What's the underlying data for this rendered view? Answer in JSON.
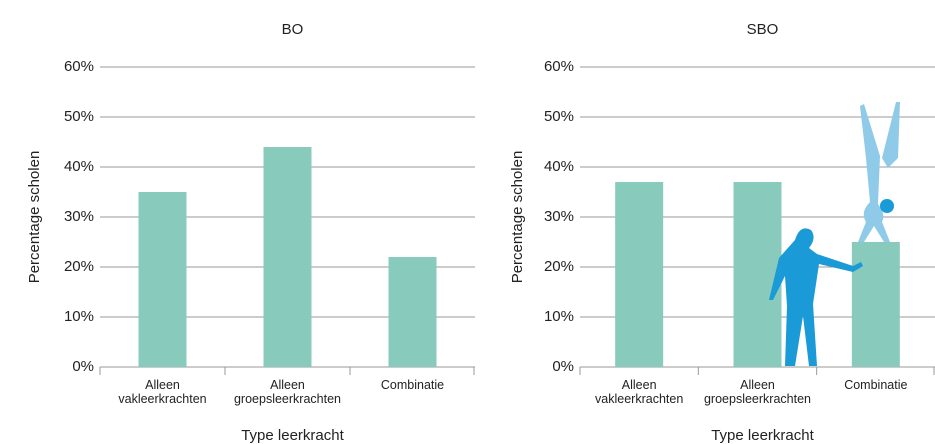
{
  "chart_data": [
    {
      "type": "bar",
      "title": "BO",
      "y_label": "Percentage scholen",
      "x_label": "Type leerkracht",
      "categories": [
        "Alleen vakleerkrachten",
        "Alleen groepsleerkrachten",
        "Combinatie"
      ],
      "values": [
        35,
        44,
        22
      ],
      "color": "#88cbbd",
      "ylim": [
        0,
        60
      ],
      "yticks": [
        {
          "value": 0,
          "label": "0%"
        },
        {
          "value": 10,
          "label": "10%"
        },
        {
          "value": 20,
          "label": "20%"
        },
        {
          "value": 30,
          "label": "30%"
        },
        {
          "value": 40,
          "label": "40%"
        },
        {
          "value": 50,
          "label": "50%"
        },
        {
          "value": 60,
          "label": "60%"
        }
      ],
      "grid": true
    },
    {
      "type": "bar",
      "title": "SBO",
      "y_label": "Percentage scholen",
      "x_label": "Type leerkracht",
      "categories": [
        "Alleen vakleerkrachten",
        "Alleen groepsleerkrachten",
        "Combinatie"
      ],
      "values": [
        37,
        37,
        25
      ],
      "color": "#88cbbd",
      "ylim": [
        0,
        60
      ],
      "yticks": [
        {
          "value": 0,
          "label": "0%"
        },
        {
          "value": 10,
          "label": "10%"
        },
        {
          "value": 20,
          "label": "20%"
        },
        {
          "value": 30,
          "label": "30%"
        },
        {
          "value": 40,
          "label": "40%"
        },
        {
          "value": 50,
          "label": "50%"
        },
        {
          "value": 60,
          "label": "60%"
        }
      ],
      "grid": true
    }
  ]
}
